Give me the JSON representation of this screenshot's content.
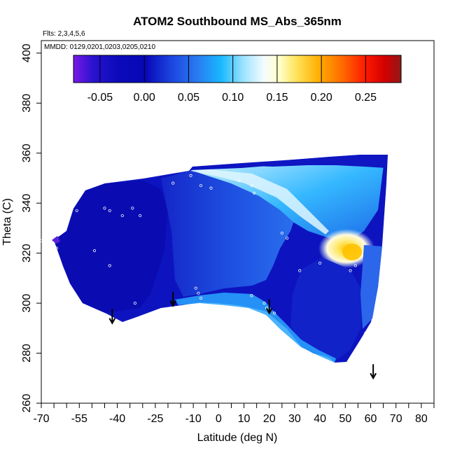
{
  "chart_data": {
    "type": "heatmap",
    "title": "ATOM2 Southbound MS_Abs_365nm",
    "annotations": [
      "Flts: 2,3,4,5,6",
      "MMDD: 0129,0201,0203,0205,0210"
    ],
    "xlabel": "Latitude (deg N)",
    "ylabel": "Theta (C)",
    "xlim": [
      -70,
      85
    ],
    "ylim": [
      260,
      405
    ],
    "x_tick_labels": [
      -70,
      -55,
      -40,
      -25,
      -10,
      0,
      10,
      20,
      30,
      40,
      50,
      60,
      70,
      80
    ],
    "x_minor_ticks": [
      -65,
      -60,
      -50,
      -45,
      -35,
      -30,
      -20,
      -15,
      -5,
      5,
      15,
      25,
      35,
      45,
      55,
      65,
      75,
      85
    ],
    "y_tick_labels": [
      260,
      280,
      300,
      320,
      340,
      360,
      380,
      400
    ],
    "colorbar": {
      "range": [
        -0.08,
        0.29
      ],
      "tick_labels": [
        "-0.05",
        "0.00",
        "0.05",
        "0.10",
        "0.15",
        "0.20",
        "0.25"
      ],
      "tick_values": [
        -0.05,
        0.0,
        0.05,
        0.1,
        0.15,
        0.2,
        0.25
      ],
      "line_values": [
        -0.05,
        0.0,
        0.05,
        0.1,
        0.15,
        0.2,
        0.25
      ],
      "colors": [
        "#7a19e6",
        "#1b12c9",
        "#0a0ab8",
        "#1a3fdd",
        "#2a78f0",
        "#18b4ff",
        "#7fdcff",
        "#e8f6ff",
        "#ffffd4",
        "#ffe45a",
        "#ffb000",
        "#ff7200",
        "#ff1e00",
        "#d40000",
        "#9a1010"
      ]
    },
    "grid": false,
    "arrows_latitude": [
      -42,
      -18,
      20,
      61
    ],
    "arrows_theta": [
      292,
      299,
      296,
      270
    ]
  }
}
